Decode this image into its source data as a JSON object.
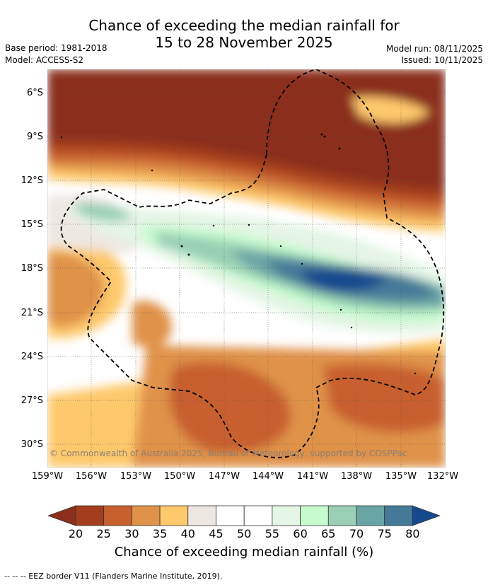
{
  "header": {
    "title_line1": "Chance of exceeding the median rainfall for",
    "title_line2": "15 to 28 November 2025",
    "base_period": "Base period: 1981-2018",
    "model": "Model: ACCESS-S2",
    "model_run": "Model run: 08/11/2025",
    "issued": "Issued: 10/11/2025"
  },
  "map": {
    "lat_labels": [
      "6°S",
      "9°S",
      "12°S",
      "15°S",
      "18°S",
      "21°S",
      "24°S",
      "27°S",
      "30°S"
    ],
    "lon_labels": [
      "159°W",
      "156°W",
      "153°W",
      "150°W",
      "147°W",
      "144°W",
      "141°W",
      "138°W",
      "135°W",
      "132°W"
    ],
    "copyright": "© Commonwealth of Australia 2025, Bureau of Meteorology, supported by COSPPac"
  },
  "colorbar": {
    "labels": [
      "20",
      "25",
      "30",
      "35",
      "40",
      "45",
      "50",
      "55",
      "60",
      "65",
      "70",
      "75",
      "80"
    ],
    "colors": [
      "#a33d1d",
      "#c7602d",
      "#e0924a",
      "#fec96d",
      "#ede7e2",
      "#ffffff",
      "#ffffff",
      "#e5f5e6",
      "#c6fbcd",
      "#99cfb4",
      "#6aa5a5",
      "#447a98"
    ],
    "low_arrow_color": "#8b2e1c",
    "high_arrow_color": "#14498e",
    "title": "Chance of exceeding median rainfall (%)"
  },
  "footer": {
    "legend_text": "-- -- -- EEZ border V11 (Flanders Marine Institute, 2019)."
  }
}
